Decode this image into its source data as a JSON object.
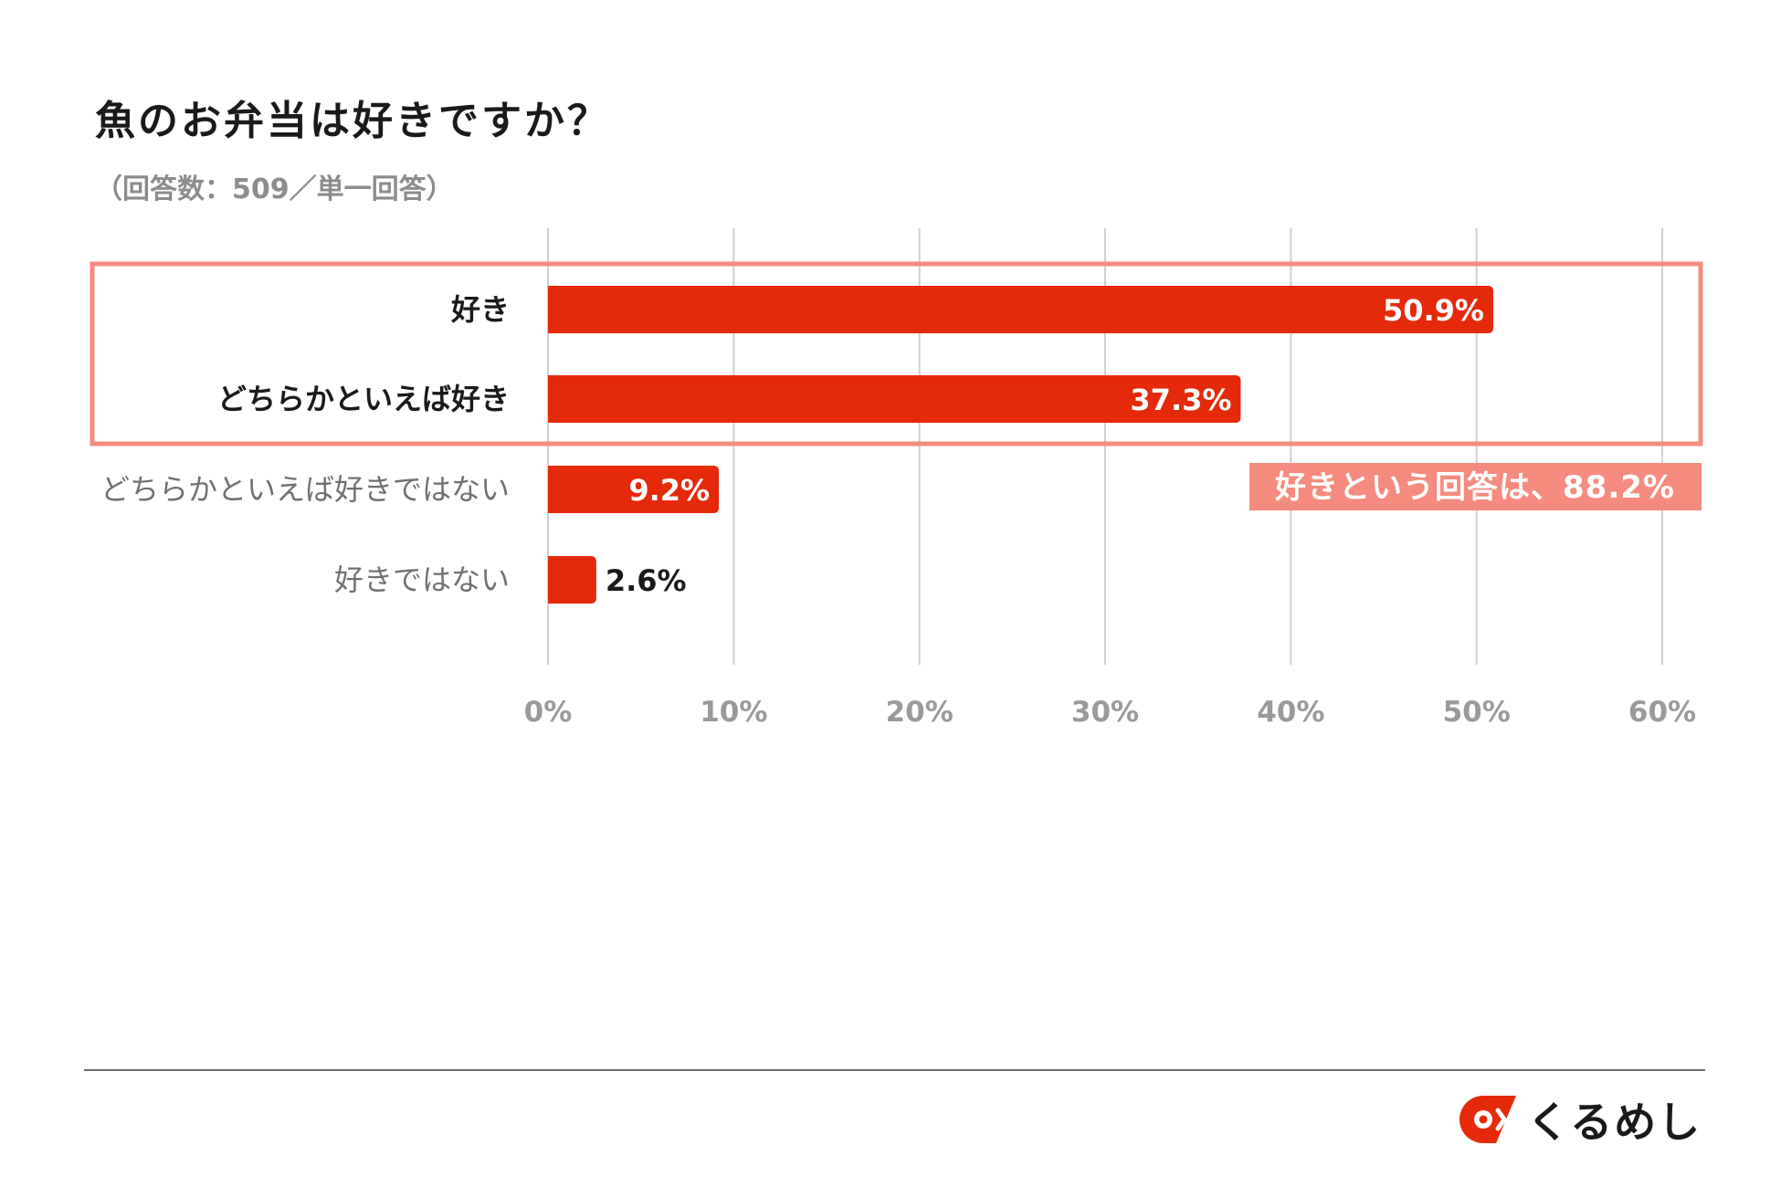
{
  "header": {
    "title": "魚のお弁当は好きですか？",
    "subtitle": "（回答数：509／単一回答）"
  },
  "chart_data": {
    "type": "bar",
    "orientation": "horizontal",
    "categories": [
      "好き",
      "どちらかといえば好き",
      "どちらかといえば好きではない",
      "好きではない"
    ],
    "values": [
      50.9,
      37.3,
      9.2,
      2.6
    ],
    "value_labels": [
      "50.9%",
      "37.3%",
      "9.2%",
      "2.6%"
    ],
    "x_ticks": [
      "0%",
      "10%",
      "20%",
      "30%",
      "40%",
      "50%",
      "60%"
    ],
    "xlim": [
      0,
      60
    ],
    "grid": "vertical",
    "bar_color": "#e52a0c",
    "highlight": {
      "categories": [
        "好き",
        "どちらかといえば好き"
      ],
      "annotation": "好きという回答は、88.2%",
      "color": "#f58b7e"
    }
  },
  "footer": {
    "brand": "くるめし",
    "logo_icon": "kurumeshi-logo-icon",
    "brand_color": "#e52a0c"
  }
}
